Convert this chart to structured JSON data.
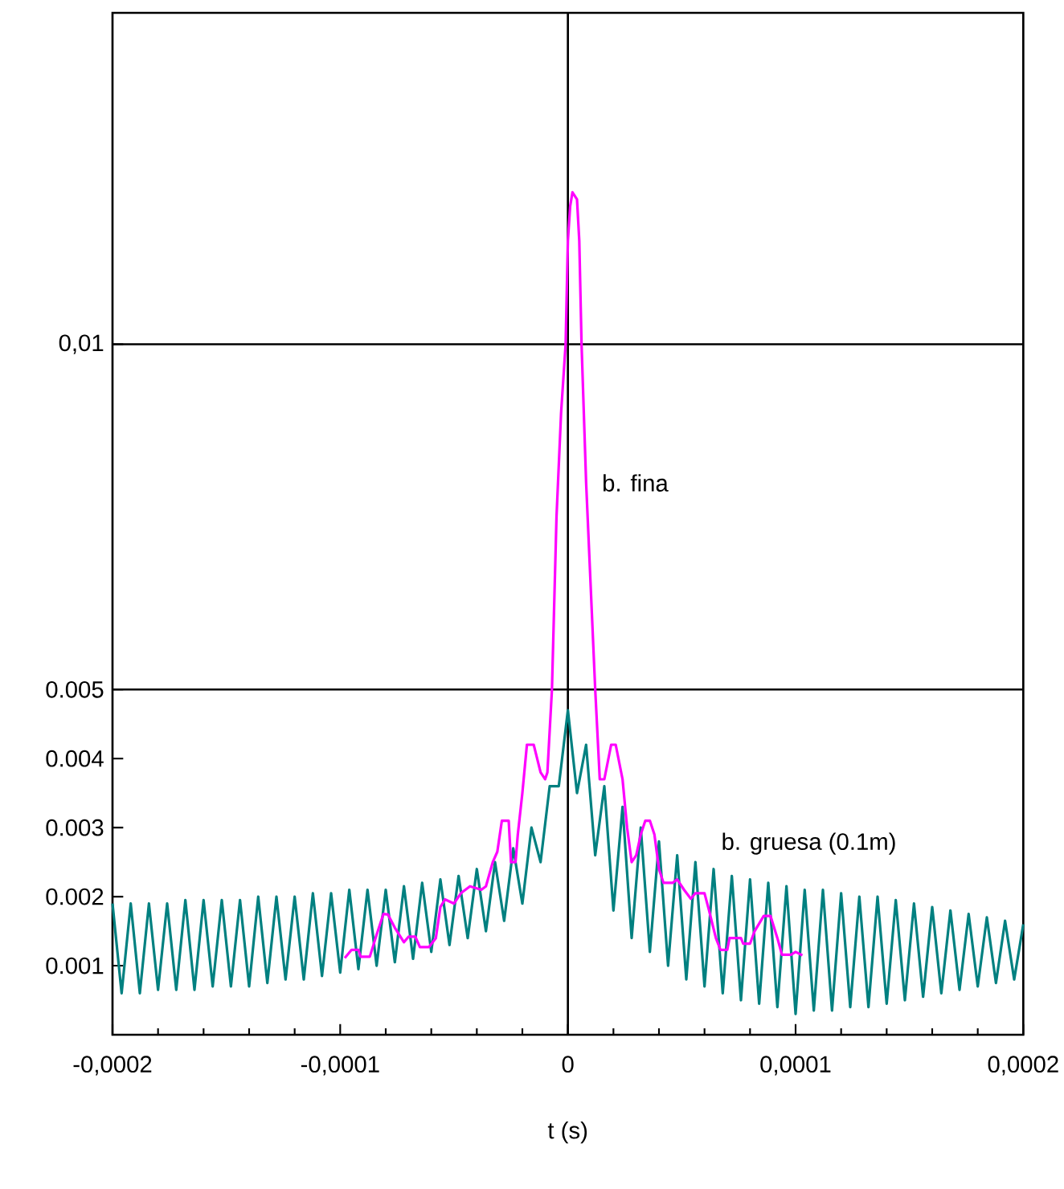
{
  "chart_data": {
    "type": "line",
    "xlabel": "t   (s)",
    "xlim": [
      -0.0002,
      0.0002
    ],
    "ylim": [
      0,
      0.0148
    ],
    "xticks": [
      {
        "value": -0.0002,
        "label": "-0,0002"
      },
      {
        "value": -0.0001,
        "label": "-0,0001"
      },
      0,
      {
        "value": 0.0001,
        "label": "0,0001"
      },
      {
        "value": 0.0002,
        "label": "0,0002"
      }
    ],
    "yticks": [
      0.001,
      0.002,
      0.003,
      0.004,
      0.005,
      {
        "value": 0.01,
        "label": "0,01"
      }
    ],
    "ref_lines": [
      {
        "axis": "y",
        "value": 0.005,
        "color": "#000000"
      },
      {
        "axis": "y",
        "value": 0.01,
        "color": "#000000"
      },
      {
        "axis": "x",
        "value": 0,
        "color": "#000000"
      }
    ],
    "marker": "none",
    "line_style": "solid",
    "grid": false,
    "legend": false,
    "series": [
      {
        "name": "b. gruesa (0.1m)",
        "color": "#008080",
        "x": [
          -0.0002,
          -0.000196,
          -0.000192,
          -0.000188,
          -0.000184,
          -0.00018,
          -0.000176,
          -0.000172,
          -0.000168,
          -0.000164,
          -0.00016,
          -0.000156,
          -0.000152,
          -0.000148,
          -0.000144,
          -0.00014,
          -0.000136,
          -0.000132,
          -0.000128,
          -0.000124,
          -0.00012,
          -0.000116,
          -0.000112,
          -0.000108,
          -0.000104,
          -0.0001,
          -9.6e-05,
          -9.2e-05,
          -8.8e-05,
          -8.4e-05,
          -8e-05,
          -7.6e-05,
          -7.2e-05,
          -6.8e-05,
          -6.4e-05,
          -6e-05,
          -5.6e-05,
          -5.2e-05,
          -4.8e-05,
          -4.4e-05,
          -4e-05,
          -3.6e-05,
          -3.2e-05,
          -2.8e-05,
          -2.4e-05,
          -2e-05,
          -1.6e-05,
          -1.2e-05,
          -8e-06,
          -4e-06,
          0,
          4e-06,
          8e-06,
          1.2e-05,
          1.6e-05,
          2e-05,
          2.4e-05,
          2.8e-05,
          3.2e-05,
          3.6e-05,
          4e-05,
          4.4e-05,
          4.8e-05,
          5.2e-05,
          5.6e-05,
          6e-05,
          6.4e-05,
          6.8e-05,
          7.2e-05,
          7.6e-05,
          8e-05,
          8.4e-05,
          8.8e-05,
          9.2e-05,
          9.6e-05,
          0.0001,
          0.000104,
          0.000108,
          0.000112,
          0.000116,
          0.00012,
          0.000124,
          0.000128,
          0.000132,
          0.000136,
          0.00014,
          0.000144,
          0.000148,
          0.000152,
          0.000156,
          0.00016,
          0.000164,
          0.000168,
          0.000172,
          0.000176,
          0.00018,
          0.000184,
          0.000188,
          0.000192,
          0.000196,
          0.0002
        ],
        "values": [
          0.0019,
          0.0006,
          0.0019,
          0.0006,
          0.0019,
          0.00065,
          0.0019,
          0.00065,
          0.00195,
          0.00065,
          0.00195,
          0.0007,
          0.00195,
          0.0007,
          0.00195,
          0.0007,
          0.002,
          0.00075,
          0.002,
          0.0008,
          0.002,
          0.0008,
          0.00205,
          0.00085,
          0.00205,
          0.0009,
          0.0021,
          0.00095,
          0.0021,
          0.001,
          0.0021,
          0.00105,
          0.00215,
          0.0011,
          0.0022,
          0.0012,
          0.00225,
          0.0013,
          0.0023,
          0.0014,
          0.0024,
          0.0015,
          0.0025,
          0.00165,
          0.0027,
          0.0019,
          0.003,
          0.0025,
          0.0036,
          0.0036,
          0.0047,
          0.0035,
          0.0042,
          0.0026,
          0.0036,
          0.0018,
          0.0033,
          0.0014,
          0.003,
          0.0012,
          0.0028,
          0.001,
          0.0026,
          0.0008,
          0.0025,
          0.0007,
          0.0024,
          0.0006,
          0.0023,
          0.0005,
          0.00225,
          0.00045,
          0.0022,
          0.0004,
          0.00215,
          0.0003,
          0.0021,
          0.00035,
          0.0021,
          0.00035,
          0.00205,
          0.0004,
          0.002,
          0.0004,
          0.002,
          0.00045,
          0.00195,
          0.0005,
          0.0019,
          0.00055,
          0.00185,
          0.0006,
          0.0018,
          0.00065,
          0.00175,
          0.0007,
          0.0017,
          0.00075,
          0.00165,
          0.0008,
          0.0016
        ]
      },
      {
        "name": "b. fina",
        "color": "#ff00ff",
        "x": [
          -9.8e-05,
          -9.5e-05,
          -9.2e-05,
          -9.1e-05,
          -8.7e-05,
          -8.4e-05,
          -8.1e-05,
          -7.9e-05,
          -7.6e-05,
          -7.2e-05,
          -7e-05,
          -6.7e-05,
          -6.5e-05,
          -6.1e-05,
          -5.8e-05,
          -5.6e-05,
          -5.4e-05,
          -5e-05,
          -4.7e-05,
          -4.3e-05,
          -3.8e-05,
          -3.6e-05,
          -3.3e-05,
          -3.1e-05,
          -2.9e-05,
          -2.6e-05,
          -2.5e-05,
          -2.3e-05,
          -2.2e-05,
          -2e-05,
          -1.8e-05,
          -1.5e-05,
          -1.2e-05,
          -1e-05,
          -9e-06,
          -7e-06,
          -5e-06,
          -3e-06,
          -1e-06,
          0,
          1e-06,
          2e-06,
          4e-06,
          5e-06,
          6e-06,
          8e-06,
          1e-05,
          1.2e-05,
          1.4e-05,
          1.6e-05,
          1.9e-05,
          2.1e-05,
          2.4e-05,
          2.6e-05,
          2.8e-05,
          3e-05,
          3.2e-05,
          3.4e-05,
          3.6e-05,
          3.8e-05,
          4e-05,
          4.2e-05,
          4.6e-05,
          4.8e-05,
          5.1e-05,
          5.4e-05,
          5.6e-05,
          6e-05,
          6.2e-05,
          6.5e-05,
          6.7e-05,
          7e-05,
          7.1e-05,
          7.6e-05,
          7.7e-05,
          8e-05,
          8.2e-05,
          8.6e-05,
          8.9e-05,
          9.2e-05,
          9.4e-05,
          9.8e-05,
          0.0001,
          0.000103
        ],
        "values": [
          0.00111,
          0.00123,
          0.00123,
          0.00113,
          0.00113,
          0.00145,
          0.00175,
          0.00174,
          0.00155,
          0.00134,
          0.00142,
          0.00142,
          0.00127,
          0.00127,
          0.0014,
          0.00185,
          0.00196,
          0.0019,
          0.00205,
          0.00215,
          0.0021,
          0.00215,
          0.0025,
          0.00265,
          0.0031,
          0.0031,
          0.0025,
          0.0025,
          0.0029,
          0.0035,
          0.0042,
          0.0042,
          0.0038,
          0.0037,
          0.0038,
          0.005,
          0.0075,
          0.009,
          0.01,
          0.0115,
          0.012,
          0.0122,
          0.0121,
          0.0115,
          0.01,
          0.008,
          0.0065,
          0.005,
          0.0037,
          0.0037,
          0.0042,
          0.0042,
          0.0037,
          0.003,
          0.0025,
          0.0026,
          0.0029,
          0.0031,
          0.0031,
          0.0029,
          0.0024,
          0.0022,
          0.0022,
          0.00225,
          0.0021,
          0.00197,
          0.00205,
          0.00205,
          0.0018,
          0.0014,
          0.00123,
          0.00123,
          0.0014,
          0.0014,
          0.00132,
          0.00132,
          0.0015,
          0.00172,
          0.00172,
          0.0014,
          0.00116,
          0.00116,
          0.0012,
          0.00115
        ]
      }
    ]
  }
}
